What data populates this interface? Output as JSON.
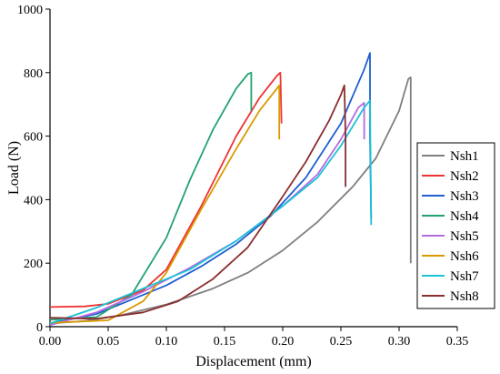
{
  "chart_data": {
    "type": "line",
    "xlabel": "Displacement (mm)",
    "ylabel": "Load (N)",
    "xlim": [
      0.0,
      0.35
    ],
    "ylim": [
      0,
      1000
    ],
    "xticks": [
      "0.00",
      "0.05",
      "0.10",
      "0.15",
      "0.20",
      "0.25",
      "0.30",
      "0.35"
    ],
    "yticks": [
      "0",
      "200",
      "400",
      "600",
      "800",
      "1000"
    ],
    "grid": false,
    "legend_position": "right",
    "series": [
      {
        "name": "Nsh1",
        "color": "#7f7f7f",
        "x": [
          0.0,
          0.03,
          0.06,
          0.1,
          0.14,
          0.17,
          0.2,
          0.23,
          0.26,
          0.28,
          0.3,
          0.308,
          0.31,
          0.31,
          0.31
        ],
        "y": [
          10,
          18,
          35,
          70,
          120,
          170,
          240,
          330,
          440,
          530,
          680,
          780,
          785,
          500,
          200
        ]
      },
      {
        "name": "Nsh2",
        "color": "#ee3333",
        "x": [
          0.0,
          0.03,
          0.05,
          0.08,
          0.1,
          0.13,
          0.16,
          0.18,
          0.195,
          0.198,
          0.199
        ],
        "y": [
          62,
          64,
          72,
          115,
          180,
          380,
          600,
          720,
          790,
          800,
          640
        ]
      },
      {
        "name": "Nsh3",
        "color": "#1f5fd0",
        "x": [
          0.0,
          0.04,
          0.07,
          0.1,
          0.13,
          0.16,
          0.19,
          0.22,
          0.25,
          0.27,
          0.275,
          0.275,
          0.276
        ],
        "y": [
          10,
          40,
          85,
          130,
          190,
          260,
          350,
          470,
          640,
          810,
          862,
          600,
          340
        ]
      },
      {
        "name": "Nsh4",
        "color": "#22a36f",
        "x": [
          0.0,
          0.04,
          0.07,
          0.1,
          0.12,
          0.14,
          0.16,
          0.17,
          0.173,
          0.173
        ],
        "y": [
          22,
          30,
          100,
          280,
          460,
          620,
          750,
          795,
          800,
          680
        ]
      },
      {
        "name": "Nsh5",
        "color": "#b36be0",
        "x": [
          0.0,
          0.04,
          0.08,
          0.12,
          0.16,
          0.2,
          0.23,
          0.25,
          0.265,
          0.27,
          0.27
        ],
        "y": [
          5,
          45,
          110,
          185,
          270,
          380,
          480,
          590,
          690,
          705,
          590
        ]
      },
      {
        "name": "Nsh6",
        "color": "#d99a00",
        "x": [
          0.0,
          0.05,
          0.08,
          0.1,
          0.13,
          0.16,
          0.18,
          0.195,
          0.197,
          0.197
        ],
        "y": [
          12,
          20,
          80,
          170,
          370,
          560,
          680,
          750,
          760,
          590
        ]
      },
      {
        "name": "Nsh7",
        "color": "#19c2d6",
        "x": [
          0.0,
          0.04,
          0.08,
          0.12,
          0.16,
          0.2,
          0.23,
          0.25,
          0.27,
          0.275,
          0.276
        ],
        "y": [
          10,
          60,
          120,
          180,
          270,
          380,
          470,
          570,
          690,
          712,
          320
        ]
      },
      {
        "name": "Nsh8",
        "color": "#8b2e2e",
        "x": [
          0.0,
          0.04,
          0.08,
          0.11,
          0.14,
          0.17,
          0.2,
          0.22,
          0.24,
          0.25,
          0.253,
          0.254,
          0.254
        ],
        "y": [
          28,
          25,
          45,
          80,
          150,
          250,
          410,
          520,
          650,
          730,
          760,
          600,
          440
        ]
      }
    ]
  }
}
